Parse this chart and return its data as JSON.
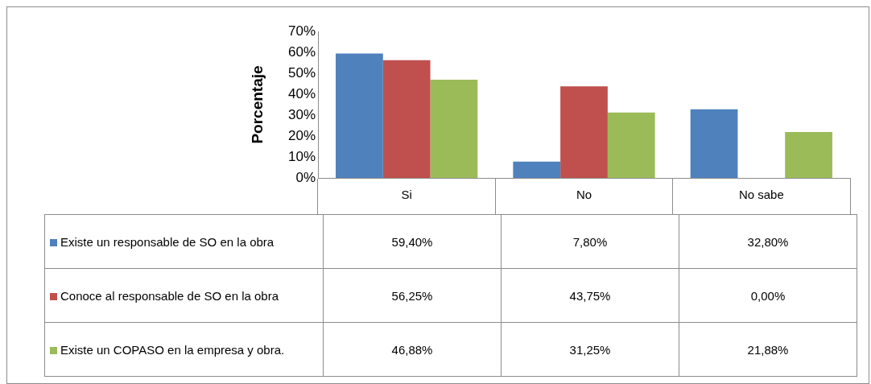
{
  "chart_data": {
    "type": "bar",
    "ylabel": "Porcentaje",
    "categories": [
      "Si",
      "No",
      "No sabe"
    ],
    "series": [
      {
        "name": "Existe un responsable de SO en la obra",
        "color": "#4f81bd",
        "values": [
          59.4,
          7.8,
          32.8
        ],
        "value_labels": [
          "59,40%",
          "7,80%",
          "32,80%"
        ]
      },
      {
        "name": "Conoce al responsable de SO en la obra",
        "color": "#c0504d",
        "values": [
          56.25,
          43.75,
          0
        ],
        "value_labels": [
          "56,25%",
          "43,75%",
          "0,00%"
        ]
      },
      {
        "name": "Existe un COPASO en la empresa y obra.",
        "color": "#9bbb59",
        "values": [
          46.88,
          31.25,
          21.88
        ],
        "value_labels": [
          "46,88%",
          "31,25%",
          "21,88%"
        ]
      }
    ],
    "ylim": [
      0,
      70
    ],
    "yticks": [
      {
        "value": 0,
        "label": "0%"
      },
      {
        "value": 10,
        "label": "10%"
      },
      {
        "value": 20,
        "label": "20%"
      },
      {
        "value": 30,
        "label": "30%"
      },
      {
        "value": 40,
        "label": "40%"
      },
      {
        "value": 50,
        "label": "50%"
      },
      {
        "value": 60,
        "label": "60%"
      },
      {
        "value": 70,
        "label": "70%"
      }
    ],
    "legend": "bottom",
    "grid": false
  }
}
